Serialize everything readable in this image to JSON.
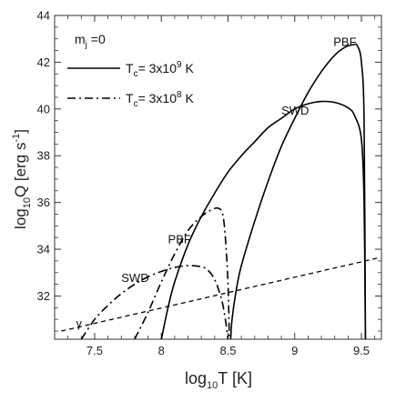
{
  "chart_data": {
    "type": "line",
    "title": "",
    "xlabel": {
      "base": "log",
      "sub": "10",
      "rest": "T   [K]"
    },
    "ylabel": {
      "base": "log",
      "sub": "10",
      "rest": "Q   [erg s",
      "sup": "-1",
      "end": "]"
    },
    "xlim": [
      7.2,
      9.65
    ],
    "ylim": [
      30.15,
      44
    ],
    "x_ticks": [
      7.5,
      8,
      8.5,
      9,
      9.5
    ],
    "x_tick_labels": [
      "7.5",
      "8",
      "8.5",
      "9",
      "9.5"
    ],
    "y_ticks": [
      32,
      34,
      36,
      38,
      40,
      42,
      44
    ],
    "y_tick_labels": [
      "32",
      "34",
      "36",
      "38",
      "40",
      "42",
      "44"
    ],
    "legend": {
      "placement": "top-left",
      "header": {
        "base": "m",
        "sub": "j",
        "rest": " =0"
      },
      "entries": [
        {
          "style": "solid",
          "prefix": "T",
          "sub": "c",
          "mid": "= 3x10",
          "sup": "9",
          "end": " K"
        },
        {
          "style": "dashdot",
          "prefix": "T",
          "sub": "c",
          "mid": "= 3x10",
          "sup": "8",
          "end": " K"
        }
      ]
    },
    "series": [
      {
        "name": "SWD",
        "group": "Tc = 3x10^9 K",
        "style": "solid",
        "points": [
          [
            8.0,
            30.15
          ],
          [
            8.05,
            31.5
          ],
          [
            8.1,
            32.6
          ],
          [
            8.2,
            34.2
          ],
          [
            8.3,
            35.4
          ],
          [
            8.4,
            36.4
          ],
          [
            8.5,
            37.3
          ],
          [
            8.6,
            38.0
          ],
          [
            8.7,
            38.6
          ],
          [
            8.8,
            39.2
          ],
          [
            8.9,
            39.6
          ],
          [
            9.0,
            40.0
          ],
          [
            9.1,
            40.22
          ],
          [
            9.2,
            40.32
          ],
          [
            9.3,
            40.28
          ],
          [
            9.4,
            40.05
          ],
          [
            9.45,
            39.7
          ],
          [
            9.5,
            38.7
          ],
          [
            9.52,
            36.0
          ],
          [
            9.53,
            30.15
          ]
        ]
      },
      {
        "name": "PBF",
        "group": "Tc = 3x10^9 K",
        "style": "solid",
        "points": [
          [
            8.52,
            30.15
          ],
          [
            8.53,
            31.0
          ],
          [
            8.56,
            32.2
          ],
          [
            8.6,
            33.3
          ],
          [
            8.7,
            35.2
          ],
          [
            8.8,
            36.9
          ],
          [
            8.9,
            38.4
          ],
          [
            9.0,
            39.6
          ],
          [
            9.1,
            40.7
          ],
          [
            9.2,
            41.6
          ],
          [
            9.3,
            42.3
          ],
          [
            9.38,
            42.65
          ],
          [
            9.44,
            42.75
          ],
          [
            9.47,
            42.7
          ],
          [
            9.5,
            42.0
          ],
          [
            9.52,
            39.5
          ],
          [
            9.53,
            30.15
          ]
        ]
      },
      {
        "name": "SWD",
        "group": "Tc = 3x10^8 K",
        "style": "dashdot",
        "points": [
          [
            7.4,
            30.15
          ],
          [
            7.5,
            31.0
          ],
          [
            7.6,
            31.6
          ],
          [
            7.7,
            32.1
          ],
          [
            7.8,
            32.5
          ],
          [
            7.9,
            32.82
          ],
          [
            8.0,
            33.05
          ],
          [
            8.1,
            33.22
          ],
          [
            8.2,
            33.3
          ],
          [
            8.3,
            33.25
          ],
          [
            8.35,
            33.1
          ],
          [
            8.4,
            32.7
          ],
          [
            8.45,
            31.9
          ],
          [
            8.48,
            31.0
          ],
          [
            8.5,
            30.15
          ]
        ]
      },
      {
        "name": "PBF",
        "group": "Tc = 3x10^8 K",
        "style": "dashdot",
        "points": [
          [
            7.8,
            30.15
          ],
          [
            7.9,
            31.3
          ],
          [
            8.0,
            32.6
          ],
          [
            8.1,
            33.8
          ],
          [
            8.2,
            34.8
          ],
          [
            8.3,
            35.4
          ],
          [
            8.38,
            35.7
          ],
          [
            8.43,
            35.75
          ],
          [
            8.46,
            35.5
          ],
          [
            8.48,
            34.5
          ],
          [
            8.5,
            32.5
          ],
          [
            8.51,
            30.15
          ]
        ]
      },
      {
        "name": "γ",
        "group": "",
        "style": "dashed",
        "points": [
          [
            7.25,
            30.5
          ],
          [
            9.62,
            33.62
          ]
        ]
      }
    ],
    "curve_labels": [
      {
        "text": "PBF",
        "x": 9.29,
        "y": 42.7
      },
      {
        "text": "SWD",
        "x": 8.9,
        "y": 39.75
      },
      {
        "text": "PBF",
        "x": 8.05,
        "y": 34.25
      },
      {
        "text": "SWD",
        "x": 7.7,
        "y": 32.6
      },
      {
        "text": "γ",
        "x": 7.36,
        "y": 30.65
      }
    ],
    "colors": {
      "line": "#000000",
      "axis": "#333333"
    }
  }
}
